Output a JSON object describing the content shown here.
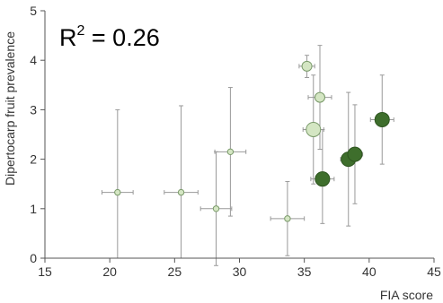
{
  "chart_data": {
    "type": "scatter",
    "xlabel": "FIA score",
    "ylabel": "Dipertocarp fruit prevalence",
    "xlim": [
      15,
      45
    ],
    "ylim": [
      0,
      5
    ],
    "x_ticks": [
      "15",
      "20",
      "25",
      "30",
      "35",
      "40",
      "45"
    ],
    "y_ticks": [
      "0",
      "1",
      "2",
      "3",
      "4",
      "5"
    ],
    "annotation": {
      "base": "R",
      "sup": "2",
      "rest": " = 0.26"
    },
    "grid": false,
    "legend": "none",
    "points": [
      {
        "x": 20.6,
        "y": 1.33,
        "xerr": 1.2,
        "y_lo": 0.0,
        "y_hi": 3.0,
        "fill": "#d4e6c3",
        "size": "small"
      },
      {
        "x": 25.5,
        "y": 1.33,
        "xerr": 1.3,
        "y_lo": 0.0,
        "y_hi": 3.08,
        "fill": "#d4e6c3",
        "size": "small"
      },
      {
        "x": 28.2,
        "y": 1.0,
        "xerr": 1.2,
        "y_lo": -0.15,
        "y_hi": 2.15,
        "fill": "#d4e6c3",
        "size": "small"
      },
      {
        "x": 29.3,
        "y": 2.15,
        "xerr": 1.2,
        "y_lo": 0.85,
        "y_hi": 3.45,
        "fill": "#d4e6c3",
        "size": "small"
      },
      {
        "x": 33.7,
        "y": 0.8,
        "xerr": 1.3,
        "y_lo": 0.05,
        "y_hi": 1.55,
        "fill": "#d4e6c3",
        "size": "small"
      },
      {
        "x": 35.2,
        "y": 3.88,
        "xerr": 0.6,
        "y_lo": 3.65,
        "y_hi": 4.1,
        "fill": "#d4e6c3",
        "size": "medium"
      },
      {
        "x": 36.2,
        "y": 3.25,
        "xerr": 0.9,
        "y_lo": 2.2,
        "y_hi": 4.3,
        "fill": "#d4e6c3",
        "size": "medium"
      },
      {
        "x": 35.7,
        "y": 2.6,
        "xerr": 0.8,
        "y_lo": 1.5,
        "y_hi": 3.7,
        "fill": "#d4e6c3",
        "size": "large"
      },
      {
        "x": 36.4,
        "y": 1.6,
        "xerr": 0.9,
        "y_lo": 0.7,
        "y_hi": 2.6,
        "fill": "#3e6e2c",
        "size": "large"
      },
      {
        "x": 38.4,
        "y": 2.0,
        "xerr": 0.6,
        "y_lo": 0.65,
        "y_hi": 3.35,
        "fill": "#3e6e2c",
        "size": "large"
      },
      {
        "x": 38.9,
        "y": 2.1,
        "xerr": 0.6,
        "y_lo": 1.1,
        "y_hi": 3.1,
        "fill": "#3e6e2c",
        "size": "large"
      },
      {
        "x": 41.0,
        "y": 2.8,
        "xerr": 0.9,
        "y_lo": 1.9,
        "y_hi": 3.7,
        "fill": "#3e6e2c",
        "size": "large"
      }
    ],
    "colors": {
      "light_fill": "#d4e6c3",
      "dark_fill": "#3e6e2c",
      "marker_edge": "#7a9a6a",
      "errorbar": "#999999",
      "axis": "#555555"
    }
  }
}
